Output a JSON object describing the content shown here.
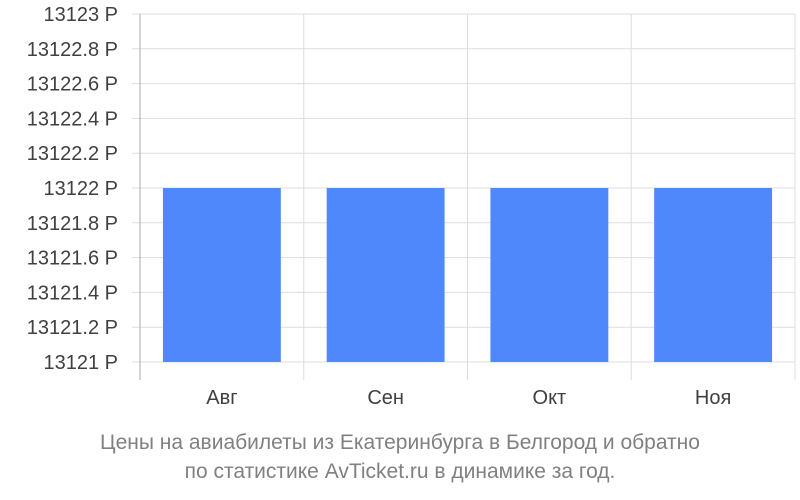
{
  "chart_data": {
    "type": "bar",
    "categories": [
      "Авг",
      "Сен",
      "Окт",
      "Ноя"
    ],
    "values": [
      13122,
      13122,
      13122,
      13122
    ],
    "ylim": [
      13121,
      13123
    ],
    "yticks": [
      "13121 Р",
      "13121.2 Р",
      "13121.4 Р",
      "13121.6 Р",
      "13121.8 Р",
      "13122 Р",
      "13122.2 Р",
      "13122.4 Р",
      "13122.6 Р",
      "13122.8 Р",
      "13123 Р"
    ],
    "caption_line1": "Цены на авиабилеты из Екатеринбурга в Белгород и обратно",
    "caption_line2": "по статистике AvTicket.ru в динамике за год.",
    "grid": true,
    "colors": {
      "bar": "#4f88fa",
      "grid": "#dddddd",
      "axis": "#aaaaaa"
    }
  }
}
